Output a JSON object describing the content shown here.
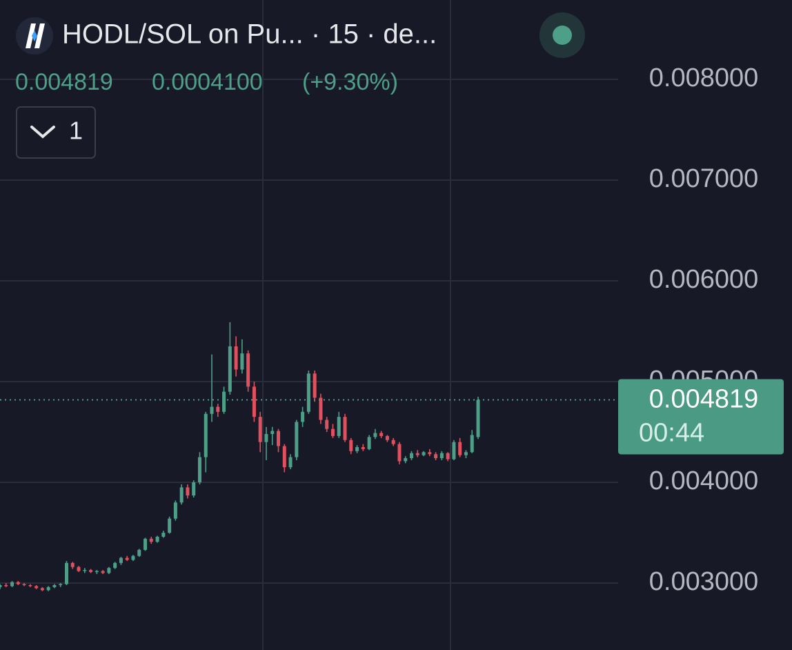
{
  "chart_data": {
    "type": "candlestick",
    "title": "HODL/SOL on Pu... · 15 · de...",
    "change": "0.0004100",
    "change_pct": "(+9.30%)",
    "button_label": "1",
    "last_price": 0.004819,
    "countdown": "00:44",
    "up_color": "#4e9f88",
    "down_color": "#e0505e",
    "grid": true,
    "ylim": [
      0.002336,
      0.008788
    ],
    "yticks": [
      {
        "value": 0.003,
        "label": "0.003000"
      },
      {
        "value": 0.004,
        "label": "0.004000"
      },
      {
        "value": 0.005,
        "label": "0.005000"
      },
      {
        "value": 0.006,
        "label": "0.006000"
      },
      {
        "value": 0.007,
        "label": "0.007000"
      },
      {
        "value": 0.008,
        "label": "0.008000"
      }
    ],
    "open": [
      0.00296,
      0.00298,
      0.00297,
      0.00301,
      0.00299,
      0.00298,
      0.00297,
      0.00295,
      0.00293,
      0.00296,
      0.00298,
      0.00299,
      0.0032,
      0.00316,
      0.00312,
      0.00313,
      0.00311,
      0.00312,
      0.0031,
      0.00315,
      0.0032,
      0.00325,
      0.00323,
      0.00327,
      0.00333,
      0.00344,
      0.00341,
      0.00346,
      0.0035,
      0.00364,
      0.0038,
      0.00395,
      0.00387,
      0.004,
      0.00425,
      0.00468,
      0.00475,
      0.0047,
      0.0049,
      0.00535,
      0.00512,
      0.00528,
      0.00495,
      0.00465,
      0.0044,
      0.00448,
      0.00451,
      0.00436,
      0.00415,
      0.00425,
      0.0046,
      0.0047,
      0.00508,
      0.00484,
      0.00462,
      0.00453,
      0.00446,
      0.00465,
      0.00442,
      0.00431,
      0.00435,
      0.00433,
      0.00445,
      0.00449,
      0.00446,
      0.00442,
      0.00438,
      0.00421,
      0.00424,
      0.00429,
      0.00427,
      0.0043,
      0.00428,
      0.00424,
      0.00429,
      0.00423,
      0.0044,
      0.00427,
      0.0043,
      0.00445
    ],
    "high": [
      0.00299,
      0.003,
      0.00302,
      0.00302,
      0.003,
      0.00299,
      0.00298,
      0.00296,
      0.00297,
      0.00299,
      0.003,
      0.00322,
      0.00321,
      0.00317,
      0.00315,
      0.00314,
      0.00313,
      0.00313,
      0.00316,
      0.00321,
      0.00326,
      0.00327,
      0.00328,
      0.00334,
      0.00345,
      0.00346,
      0.00347,
      0.00352,
      0.00366,
      0.00382,
      0.00398,
      0.00398,
      0.00402,
      0.0043,
      0.0047,
      0.00527,
      0.00478,
      0.00495,
      0.00559,
      0.00545,
      0.00542,
      0.00531,
      0.005,
      0.0047,
      0.00455,
      0.00455,
      0.00453,
      0.00438,
      0.00428,
      0.00462,
      0.00475,
      0.00511,
      0.00511,
      0.00488,
      0.00465,
      0.00458,
      0.0047,
      0.00468,
      0.00444,
      0.00437,
      0.00438,
      0.00447,
      0.00453,
      0.00451,
      0.00447,
      0.00444,
      0.0044,
      0.00426,
      0.00431,
      0.00432,
      0.00431,
      0.00433,
      0.0043,
      0.00431,
      0.0043,
      0.00442,
      0.00444,
      0.00432,
      0.00452,
      0.00485
    ],
    "low": [
      0.00294,
      0.00296,
      0.00296,
      0.00298,
      0.00297,
      0.00296,
      0.00294,
      0.00292,
      0.00292,
      0.00295,
      0.00296,
      0.00298,
      0.00314,
      0.00311,
      0.0031,
      0.0031,
      0.00309,
      0.00309,
      0.00309,
      0.00314,
      0.00318,
      0.00322,
      0.00322,
      0.00326,
      0.00332,
      0.00339,
      0.0034,
      0.00345,
      0.00349,
      0.00362,
      0.00378,
      0.00384,
      0.00385,
      0.00398,
      0.0041,
      0.0046,
      0.00465,
      0.00468,
      0.00487,
      0.00505,
      0.00508,
      0.0049,
      0.0046,
      0.0043,
      0.00422,
      0.00437,
      0.0043,
      0.0041,
      0.00413,
      0.00422,
      0.00455,
      0.00468,
      0.0048,
      0.00458,
      0.0045,
      0.00444,
      0.00444,
      0.0044,
      0.00428,
      0.00429,
      0.00431,
      0.00432,
      0.00443,
      0.00444,
      0.0044,
      0.00436,
      0.00418,
      0.00419,
      0.00422,
      0.00425,
      0.00426,
      0.00426,
      0.00422,
      0.00422,
      0.00421,
      0.00422,
      0.00425,
      0.00424,
      0.00429,
      0.00443
    ],
    "close": [
      0.00298,
      0.00297,
      0.00301,
      0.00299,
      0.00298,
      0.00297,
      0.00295,
      0.00293,
      0.00296,
      0.00298,
      0.00299,
      0.0032,
      0.00316,
      0.00312,
      0.00313,
      0.00311,
      0.00312,
      0.0031,
      0.00315,
      0.0032,
      0.00325,
      0.00323,
      0.00327,
      0.00333,
      0.00344,
      0.00341,
      0.00346,
      0.0035,
      0.00364,
      0.0038,
      0.00395,
      0.00387,
      0.004,
      0.00425,
      0.00468,
      0.00475,
      0.0047,
      0.0049,
      0.00535,
      0.00512,
      0.00528,
      0.00495,
      0.00465,
      0.0044,
      0.00448,
      0.00451,
      0.00436,
      0.00415,
      0.00425,
      0.0046,
      0.0047,
      0.00508,
      0.00484,
      0.00462,
      0.00453,
      0.00446,
      0.00465,
      0.00442,
      0.00431,
      0.00435,
      0.00433,
      0.00445,
      0.00449,
      0.00446,
      0.00442,
      0.00438,
      0.00421,
      0.00424,
      0.00429,
      0.00427,
      0.0043,
      0.00428,
      0.00424,
      0.00429,
      0.00423,
      0.0044,
      0.00427,
      0.0043,
      0.00447,
      0.004819
    ]
  }
}
